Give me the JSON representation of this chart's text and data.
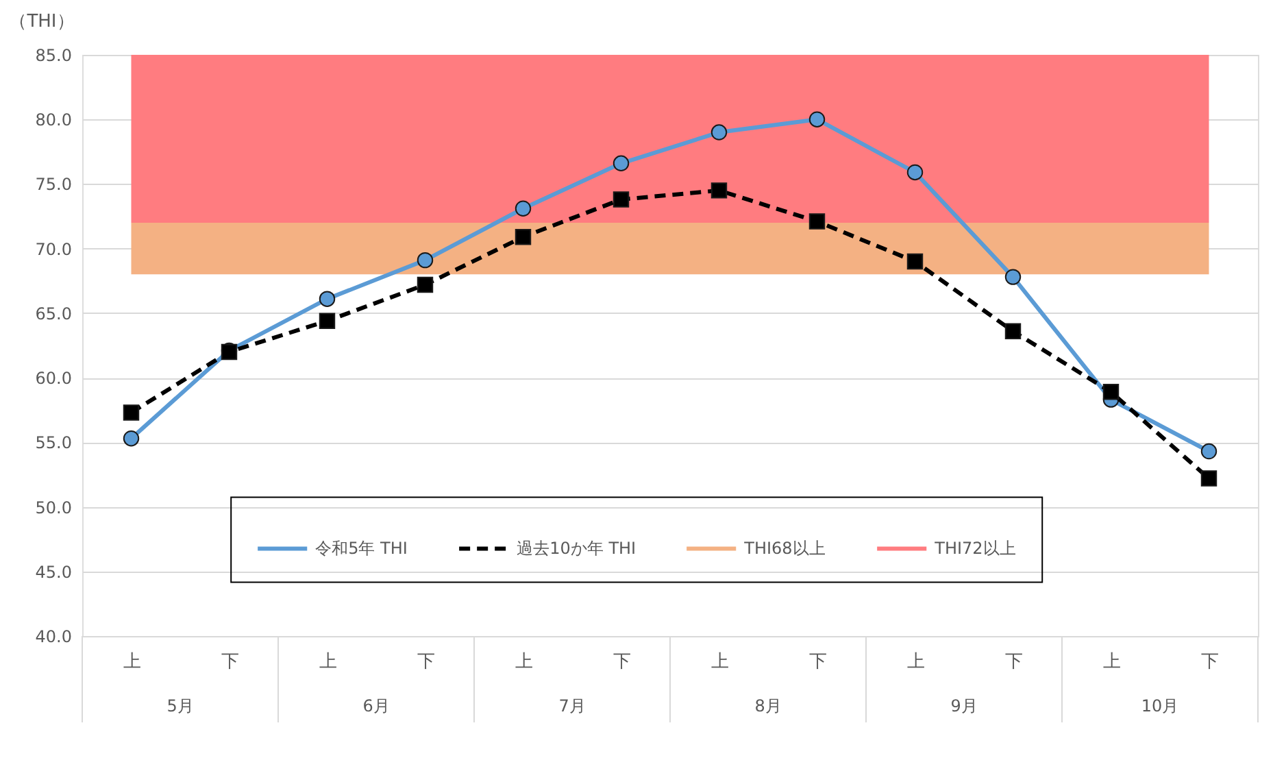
{
  "chart_data": {
    "type": "line",
    "ylabel": "（THI）",
    "categories": [
      "上",
      "下",
      "上",
      "下",
      "上",
      "下",
      "上",
      "下",
      "上",
      "下",
      "上",
      "下"
    ],
    "annotations": [
      "5月",
      "6月",
      "7月",
      "8月",
      "9月",
      "10月"
    ],
    "ylim": [
      40,
      85
    ],
    "yticks": [
      {
        "value": 40,
        "label": "40.0"
      },
      {
        "value": 45,
        "label": "45.0"
      },
      {
        "value": 50,
        "label": "50.0"
      },
      {
        "value": 55,
        "label": "55.0"
      },
      {
        "value": 60,
        "label": "60.0"
      },
      {
        "value": 65,
        "label": "65.0"
      },
      {
        "value": 70,
        "label": "70.0"
      },
      {
        "value": 75,
        "label": "75.0"
      },
      {
        "value": 80,
        "label": "80.0"
      },
      {
        "value": 85,
        "label": "85.0"
      }
    ],
    "grid": "y",
    "legend": "bottom",
    "series": [
      {
        "name": "令和5年 THI",
        "color": "#5b9bd5",
        "marker": "circle",
        "line_style": "solid",
        "values": [
          55.3,
          62.1,
          66.1,
          69.1,
          73.1,
          76.6,
          79.0,
          80.0,
          75.9,
          67.8,
          58.3,
          54.3
        ]
      },
      {
        "name": "過去10か年 THI",
        "color": "#000000",
        "marker": "square",
        "line_style": "dashed",
        "values": [
          57.3,
          62.0,
          64.4,
          67.2,
          70.9,
          73.8,
          74.5,
          72.1,
          69.0,
          63.6,
          58.9,
          52.2
        ]
      }
    ],
    "bands": [
      {
        "axis": "y",
        "from": 68,
        "to": 72,
        "label": "THI68以上",
        "color": "#f4b183"
      },
      {
        "axis": "y",
        "from": 72,
        "to": 85,
        "label": "THI72以上",
        "color": "#ff7c80"
      }
    ]
  }
}
